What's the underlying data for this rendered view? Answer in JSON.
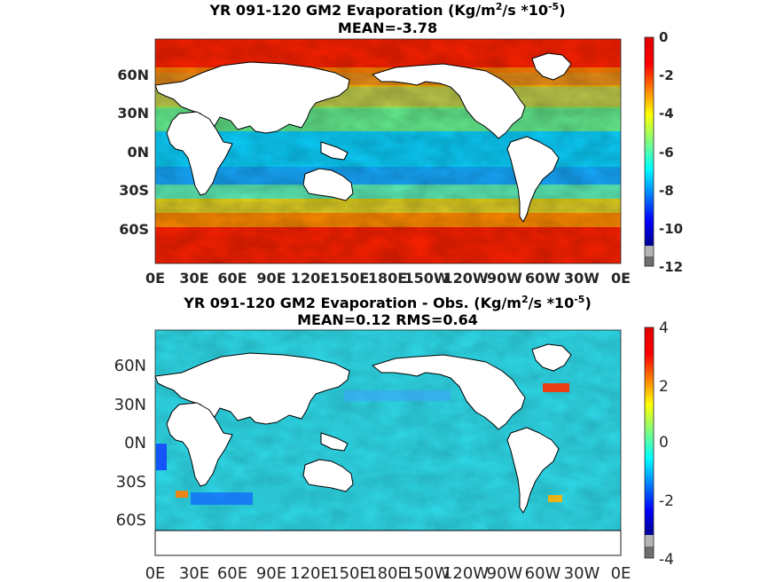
{
  "chart_data": [
    {
      "type": "heatmap",
      "title_line1_pre": "YR 091-120 GM2  Evaporation (Kg/m",
      "title_sup1": "2",
      "title_line1_mid": "/s *10",
      "title_sup2": "-5",
      "title_line1_post": ")",
      "title_line2": "MEAN=-3.78",
      "xticks": [
        "0E",
        "30E",
        "60E",
        "90E",
        "120E",
        "150E",
        "180E",
        "150W",
        "120W",
        "90W",
        "60W",
        "30W",
        "0E"
      ],
      "yticks": [
        "60N",
        "30N",
        "0N",
        "30S",
        "60S"
      ],
      "colorbar": {
        "range": [
          -12,
          0
        ],
        "ticks": [
          "0",
          "-2",
          "-4",
          "-6",
          "-8",
          "-10",
          "-12"
        ],
        "colormap": "jet",
        "missing_color": "#6e6e6e"
      },
      "mean": -3.78
    },
    {
      "type": "heatmap",
      "title_line1_pre": "YR 091-120 GM2 Evaporation - Obs. (Kg/m",
      "title_sup1": "2",
      "title_line1_mid": "/s *10",
      "title_sup2": "-5",
      "title_line1_post": ")",
      "title_line2": "MEAN=0.12   RMS=0.64",
      "xticks": [
        "0E",
        "30E",
        "60E",
        "90E",
        "120E",
        "150E",
        "180E",
        "150W",
        "120W",
        "90W",
        "60W",
        "30W",
        "0E"
      ],
      "yticks": [
        "60N",
        "30N",
        "0N",
        "30S",
        "60S"
      ],
      "colorbar": {
        "range": [
          -4,
          4
        ],
        "ticks": [
          "4",
          "2",
          "0",
          "-2",
          "-4"
        ],
        "colormap": "jet",
        "missing_color": "#6e6e6e"
      },
      "mean": 0.12,
      "rms": 0.64
    }
  ]
}
